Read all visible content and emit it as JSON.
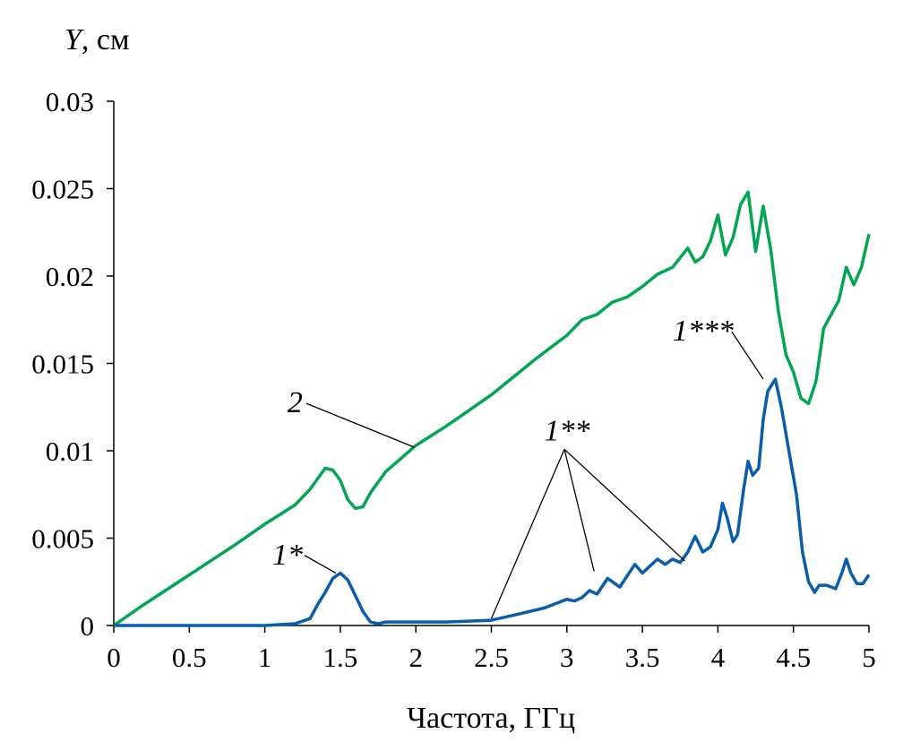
{
  "chart_data": {
    "type": "line",
    "title": "",
    "xlabel": "Частота, ГГц",
    "ylabel_var": "Y",
    "ylabel_unit": ", см",
    "xlim": [
      0,
      5
    ],
    "ylim": [
      0,
      0.03
    ],
    "xticks": [
      "0",
      "0.5",
      "1",
      "1.5",
      "2",
      "2.5",
      "3",
      "3.5",
      "4",
      "4.5",
      "5"
    ],
    "yticks": [
      "0",
      "0.005",
      "0.01",
      "0.015",
      "0.02",
      "0.025",
      "0.03"
    ],
    "grid": false,
    "colors": {
      "series2": "#00a651",
      "series1": "#0a5cad"
    },
    "series": [
      {
        "name": "2",
        "color": "#00a651",
        "x": [
          0,
          0.2,
          0.5,
          0.8,
          1.0,
          1.2,
          1.3,
          1.4,
          1.45,
          1.5,
          1.55,
          1.6,
          1.65,
          1.7,
          1.8,
          2.0,
          2.2,
          2.5,
          2.8,
          3.0,
          3.1,
          3.2,
          3.3,
          3.4,
          3.5,
          3.6,
          3.7,
          3.8,
          3.85,
          3.9,
          3.95,
          4.0,
          4.05,
          4.1,
          4.15,
          4.2,
          4.25,
          4.3,
          4.35,
          4.4,
          4.45,
          4.5,
          4.55,
          4.6,
          4.65,
          4.7,
          4.8,
          4.85,
          4.9,
          4.95,
          5.0
        ],
        "y": [
          0,
          0.0012,
          0.0029,
          0.0046,
          0.0058,
          0.0069,
          0.0078,
          0.009,
          0.0089,
          0.0083,
          0.0072,
          0.0067,
          0.0068,
          0.0076,
          0.0088,
          0.0103,
          0.0114,
          0.0132,
          0.0153,
          0.0166,
          0.0175,
          0.0178,
          0.0185,
          0.0188,
          0.0194,
          0.0201,
          0.0205,
          0.0216,
          0.0208,
          0.0211,
          0.022,
          0.0235,
          0.0212,
          0.0222,
          0.0241,
          0.0248,
          0.0214,
          0.024,
          0.0215,
          0.018,
          0.0155,
          0.0145,
          0.013,
          0.0127,
          0.014,
          0.017,
          0.0186,
          0.0205,
          0.0195,
          0.0205,
          0.0224
        ]
      },
      {
        "name": "1",
        "color": "#0a5cad",
        "x": [
          0,
          1.0,
          1.2,
          1.3,
          1.35,
          1.4,
          1.45,
          1.5,
          1.55,
          1.6,
          1.65,
          1.7,
          1.75,
          1.8,
          2.0,
          2.2,
          2.5,
          2.6,
          2.7,
          2.85,
          3.0,
          3.05,
          3.1,
          3.15,
          3.2,
          3.27,
          3.35,
          3.45,
          3.5,
          3.6,
          3.65,
          3.7,
          3.75,
          3.8,
          3.85,
          3.9,
          3.95,
          4.0,
          4.03,
          4.06,
          4.1,
          4.13,
          4.17,
          4.2,
          4.23,
          4.27,
          4.3,
          4.33,
          4.38,
          4.42,
          4.47,
          4.52,
          4.56,
          4.6,
          4.64,
          4.67,
          4.72,
          4.78,
          4.82,
          4.85,
          4.88,
          4.92,
          4.96,
          5.0
        ],
        "y": [
          0,
          0,
          0.0001,
          0.0004,
          0.0012,
          0.0019,
          0.0027,
          0.003,
          0.0026,
          0.0017,
          0.0008,
          0.0002,
          0.0001,
          0.0002,
          0.0002,
          0.0002,
          0.0003,
          0.0005,
          0.0007,
          0.001,
          0.0015,
          0.0014,
          0.0016,
          0.002,
          0.0018,
          0.0027,
          0.0022,
          0.0035,
          0.003,
          0.0038,
          0.0035,
          0.0038,
          0.0036,
          0.0042,
          0.0051,
          0.0042,
          0.0045,
          0.0055,
          0.007,
          0.0062,
          0.0048,
          0.0052,
          0.0078,
          0.0094,
          0.0086,
          0.009,
          0.0118,
          0.0134,
          0.0141,
          0.0125,
          0.01,
          0.0075,
          0.0042,
          0.0025,
          0.0019,
          0.0023,
          0.0023,
          0.0021,
          0.003,
          0.0038,
          0.003,
          0.0024,
          0.0024,
          0.0029
        ]
      }
    ],
    "annotations": [
      {
        "text": "2",
        "at": [
          1.15,
          0.0122
        ],
        "targets": [
          [
            1.99,
            0.0102
          ]
        ]
      },
      {
        "text": "1*",
        "at": [
          1.05,
          0.0035
        ],
        "targets": [
          [
            1.47,
            0.003
          ]
        ]
      },
      {
        "text": "1**",
        "at": [
          2.85,
          0.0106
        ],
        "targets": [
          [
            2.5,
            0.0004
          ],
          [
            3.18,
            0.0031
          ],
          [
            3.78,
            0.0037
          ]
        ]
      },
      {
        "text": "1***",
        "at": [
          3.7,
          0.0163
        ],
        "targets": [
          [
            4.3,
            0.0141
          ]
        ]
      }
    ]
  }
}
